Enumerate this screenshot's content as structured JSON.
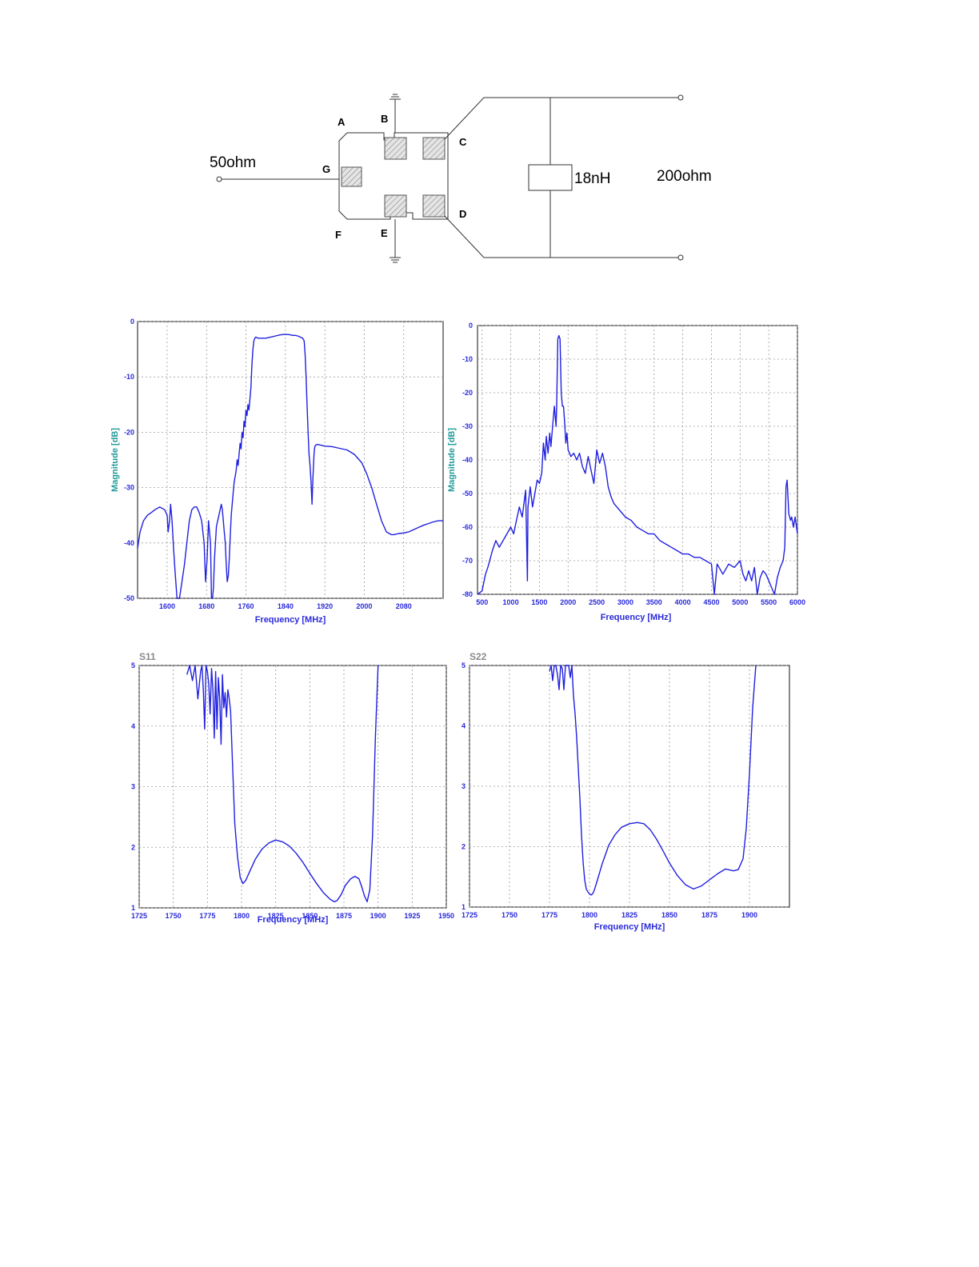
{
  "schematic": {
    "pins": {
      "a": "A",
      "b": "B",
      "c": "C",
      "d": "D",
      "e": "E",
      "f": "F",
      "g": "G"
    },
    "input_impedance": "50ohm",
    "inductor": "18nH",
    "output_impedance": "200ohm"
  },
  "chart_data": [
    {
      "type": "line",
      "title": "",
      "xlabel": "Frequency [MHz]",
      "ylabel": "Magnitude [dB]",
      "xlim": [
        1540,
        2160
      ],
      "ylim": [
        -50,
        0
      ],
      "xticks": [
        "1600",
        "1680",
        "1760",
        "1840",
        "1920",
        "2000",
        "2080"
      ],
      "yticks": [
        "0",
        "-10",
        "-20",
        "-30",
        "-40",
        "-50"
      ],
      "grid": true,
      "series": [
        {
          "x": [
            1540,
            1545,
            1552,
            1560,
            1568,
            1575,
            1585,
            1595,
            1600,
            1602,
            1605,
            1607,
            1610,
            1613,
            1616,
            1620,
            1625,
            1630,
            1635,
            1640,
            1645,
            1650,
            1655,
            1660,
            1665,
            1670,
            1675,
            1678,
            1681,
            1684,
            1688,
            1690,
            1692,
            1694,
            1696,
            1700,
            1705,
            1710,
            1712,
            1714,
            1716,
            1718,
            1720,
            1722,
            1724,
            1726,
            1728,
            1730,
            1732,
            1734,
            1736,
            1738,
            1740,
            1742,
            1744,
            1746,
            1748,
            1750,
            1752,
            1754,
            1756,
            1758,
            1760,
            1762,
            1764,
            1766,
            1768,
            1770,
            1772,
            1774,
            1776,
            1778,
            1780,
            1782,
            1785,
            1790,
            1795,
            1800,
            1810,
            1820,
            1830,
            1840,
            1850,
            1855,
            1860,
            1865,
            1870,
            1875,
            1878,
            1880,
            1882,
            1884,
            1886,
            1888,
            1890,
            1892,
            1894,
            1896,
            1898,
            1899,
            1900,
            1902,
            1905,
            1910,
            1920,
            1935,
            1950,
            1965,
            1980,
            1995,
            2005,
            2015,
            2025,
            2035,
            2045,
            2055,
            2060,
            2065,
            2070,
            2080,
            2090,
            2100,
            2110,
            2120,
            2130,
            2140,
            2150,
            2160
          ],
          "y": [
            -41,
            -38,
            -36,
            -35,
            -34.5,
            -34,
            -33.5,
            -34,
            -35,
            -38,
            -36,
            -33,
            -36,
            -41,
            -45,
            -50,
            -50,
            -47,
            -44,
            -40,
            -36,
            -34,
            -33.5,
            -33.5,
            -34.5,
            -36,
            -40,
            -47,
            -43,
            -36,
            -40,
            -50,
            -50,
            -48,
            -43,
            -37,
            -35,
            -33,
            -34,
            -36,
            -38,
            -40,
            -44,
            -47,
            -46,
            -43,
            -39,
            -35,
            -33,
            -31,
            -29,
            -28,
            -27,
            -25,
            -26,
            -24,
            -22,
            -23,
            -20,
            -21,
            -18,
            -19,
            -16,
            -17,
            -15,
            -16,
            -14,
            -12,
            -8,
            -5,
            -3.5,
            -3,
            -2.8,
            -2.9,
            -3,
            -3,
            -3,
            -3,
            -2.8,
            -2.6,
            -2.4,
            -2.3,
            -2.4,
            -2.5,
            -2.5,
            -2.6,
            -2.8,
            -3,
            -3.5,
            -6,
            -10,
            -15,
            -20,
            -24,
            -26,
            -29,
            -33,
            -28,
            -24,
            -23,
            -22.5,
            -22.3,
            -22.2,
            -22.3,
            -22.5,
            -22.6,
            -22.9,
            -23.2,
            -24,
            -25.5,
            -27.5,
            -30,
            -33,
            -36,
            -38,
            -38.5,
            -38.5,
            -38.4,
            -38.3,
            -38.2,
            -38,
            -37.6,
            -37.2,
            -36.8,
            -36.5,
            -36.2,
            -36,
            -36
          ]
        }
      ]
    },
    {
      "type": "line",
      "title": "",
      "xlabel": "Frequency [MHz]",
      "ylabel": "Magnitude [dB]",
      "xlim": [
        420,
        6000
      ],
      "ylim": [
        -80,
        0
      ],
      "xticks": [
        "500",
        "1000",
        "1500",
        "2000",
        "2500",
        "3000",
        "3500",
        "4000",
        "4500",
        "5000",
        "5500",
        "6000"
      ],
      "yticks": [
        "0",
        "-10",
        "-20",
        "-30",
        "-40",
        "-50",
        "-60",
        "-70",
        "-80"
      ],
      "grid": true,
      "series": [
        {
          "x": [
            420,
            500,
            560,
            600,
            680,
            740,
            800,
            900,
            1000,
            1050,
            1100,
            1150,
            1200,
            1260,
            1290,
            1300,
            1340,
            1380,
            1420,
            1460,
            1500,
            1540,
            1570,
            1600,
            1620,
            1650,
            1680,
            1700,
            1730,
            1760,
            1790,
            1800,
            1820,
            1840,
            1860,
            1880,
            1900,
            1920,
            1940,
            1960,
            1980,
            2000,
            2050,
            2100,
            2150,
            2200,
            2250,
            2300,
            2350,
            2400,
            2450,
            2500,
            2550,
            2600,
            2650,
            2700,
            2750,
            2800,
            2900,
            3000,
            3100,
            3200,
            3300,
            3400,
            3500,
            3600,
            3700,
            3800,
            3900,
            4000,
            4100,
            4200,
            4300,
            4400,
            4500,
            4550,
            4600,
            4700,
            4800,
            4900,
            5000,
            5050,
            5100,
            5150,
            5200,
            5250,
            5300,
            5350,
            5400,
            5450,
            5500,
            5550,
            5600,
            5650,
            5700,
            5750,
            5780,
            5800,
            5820,
            5850,
            5880,
            5900,
            5930,
            5960,
            6000
          ],
          "y": [
            -80,
            -79,
            -74,
            -72,
            -67,
            -64,
            -66,
            -63,
            -60,
            -62,
            -58,
            -54,
            -57,
            -49,
            -76,
            -54,
            -48,
            -54,
            -50,
            -46,
            -47,
            -44,
            -35,
            -40,
            -33,
            -38,
            -32,
            -36,
            -30,
            -24,
            -30,
            -25,
            -4,
            -3,
            -4,
            -20,
            -24,
            -24,
            -29,
            -35,
            -32,
            -37,
            -39,
            -38,
            -40,
            -38,
            -42,
            -44,
            -39,
            -43,
            -47,
            -37,
            -41,
            -38,
            -42,
            -48,
            -51,
            -53,
            -55,
            -57,
            -58,
            -60,
            -61,
            -62,
            -62,
            -64,
            -65,
            -66,
            -67,
            -68,
            -68,
            -69,
            -69,
            -70,
            -71,
            -80,
            -71,
            -74,
            -71,
            -72,
            -70,
            -74,
            -76,
            -73,
            -76,
            -72,
            -80,
            -75,
            -73,
            -74,
            -76,
            -78,
            -80,
            -75,
            -72,
            -70,
            -66,
            -48,
            -46,
            -56,
            -58,
            -57,
            -60,
            -57,
            -62
          ]
        }
      ]
    },
    {
      "type": "line",
      "title": "S11",
      "xlabel": "Frequency [MHz]",
      "ylabel": "",
      "xlim": [
        1725,
        1950
      ],
      "ylim": [
        1,
        5
      ],
      "xticks": [
        "1725",
        "1750",
        "1775",
        "1800",
        "1825",
        "1850",
        "1875",
        "1900",
        "1925",
        "1950"
      ],
      "yticks": [
        "1",
        "2",
        "3",
        "4",
        "5"
      ],
      "grid": true,
      "series": [
        {
          "x": [
            1760,
            1762,
            1764,
            1766,
            1768,
            1770,
            1771,
            1772,
            1773,
            1774,
            1775,
            1776,
            1777,
            1778,
            1779,
            1780,
            1781,
            1782,
            1783,
            1784,
            1785,
            1786,
            1787,
            1788,
            1789,
            1790,
            1791,
            1792,
            1793,
            1794,
            1795,
            1797,
            1799,
            1801,
            1803,
            1806,
            1810,
            1815,
            1820,
            1825,
            1830,
            1835,
            1840,
            1845,
            1850,
            1855,
            1860,
            1865,
            1868,
            1870,
            1873,
            1876,
            1880,
            1883,
            1886,
            1888,
            1890,
            1892,
            1894,
            1896,
            1898,
            1900
          ],
          "y": [
            4.85,
            5,
            4.75,
            5,
            4.45,
            4.9,
            5,
            4.6,
            3.95,
            5,
            4.9,
            4.7,
            4.2,
            4.95,
            4.6,
            3.8,
            4.9,
            3.95,
            4.8,
            4.45,
            3.7,
            4.85,
            4.3,
            4.55,
            4.15,
            4.6,
            4.45,
            4.25,
            3.6,
            3,
            2.4,
            1.85,
            1.5,
            1.4,
            1.45,
            1.6,
            1.8,
            1.97,
            2.07,
            2.12,
            2.09,
            2.02,
            1.9,
            1.75,
            1.57,
            1.4,
            1.25,
            1.14,
            1.1,
            1.12,
            1.22,
            1.37,
            1.48,
            1.52,
            1.48,
            1.35,
            1.2,
            1.1,
            1.3,
            2.2,
            3.8,
            5
          ]
        }
      ]
    },
    {
      "type": "line",
      "title": "S22",
      "xlabel": "Frequency [MHz]",
      "ylabel": "",
      "xlim": [
        1725,
        1925
      ],
      "ylim": [
        1,
        5
      ],
      "xticks": [
        "1725",
        "1750",
        "1775",
        "1800",
        "1825",
        "1850",
        "1875",
        "1900"
      ],
      "yticks": [
        "1",
        "2",
        "3",
        "4",
        "5"
      ],
      "grid": true,
      "series": [
        {
          "x": [
            1775,
            1776,
            1777,
            1778,
            1779,
            1780,
            1781,
            1782,
            1783,
            1784,
            1785,
            1786,
            1787,
            1788,
            1789,
            1790,
            1791,
            1792,
            1793,
            1794,
            1795,
            1796,
            1797,
            1798,
            1799,
            1800,
            1801,
            1802,
            1803,
            1805,
            1808,
            1812,
            1816,
            1820,
            1825,
            1830,
            1834,
            1838,
            1842,
            1846,
            1850,
            1855,
            1860,
            1865,
            1870,
            1875,
            1880,
            1885,
            1890,
            1893,
            1896,
            1898,
            1900,
            1902,
            1904
          ],
          "y": [
            4.9,
            5,
            4.75,
            5,
            5,
            4.85,
            4.6,
            5,
            4.95,
            4.6,
            5,
            5,
            5,
            4.8,
            5,
            4.5,
            4.2,
            3.8,
            3.3,
            2.8,
            2.2,
            1.75,
            1.45,
            1.3,
            1.25,
            1.22,
            1.2,
            1.22,
            1.28,
            1.45,
            1.72,
            2.02,
            2.2,
            2.32,
            2.38,
            2.4,
            2.38,
            2.28,
            2.12,
            1.93,
            1.73,
            1.52,
            1.37,
            1.3,
            1.35,
            1.45,
            1.55,
            1.63,
            1.6,
            1.62,
            1.8,
            2.3,
            3.2,
            4.3,
            5
          ]
        }
      ]
    }
  ]
}
